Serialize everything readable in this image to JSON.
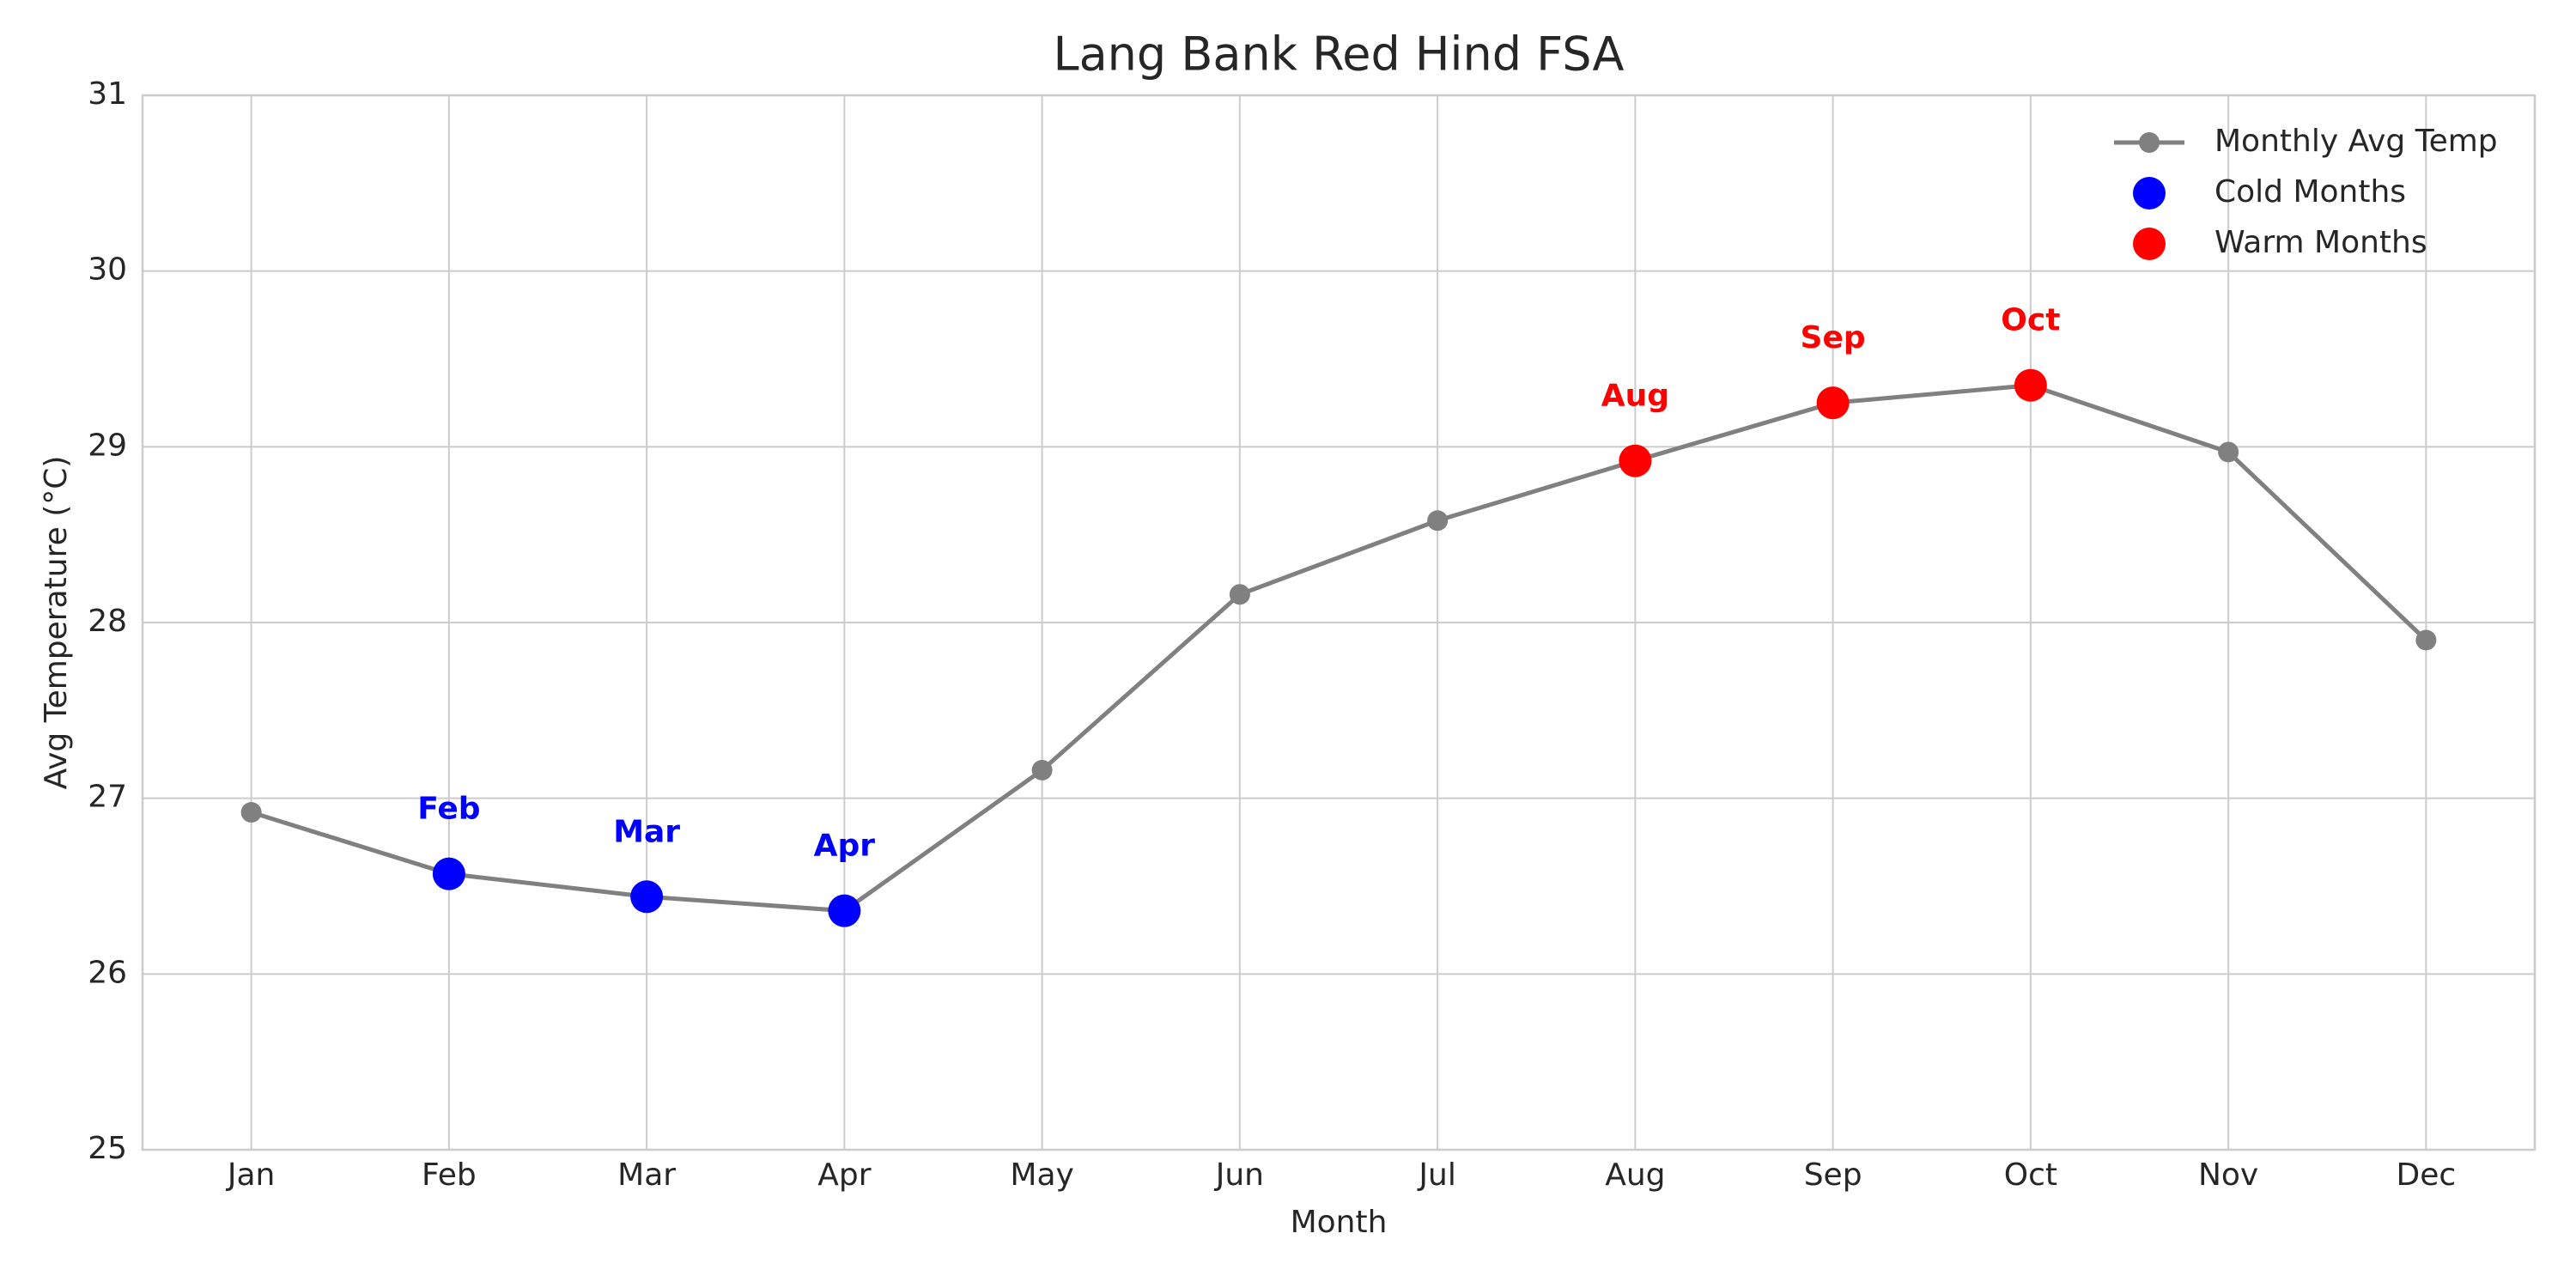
{
  "chart_data": {
    "type": "line",
    "title": "Lang Bank Red Hind FSA",
    "xlabel": "Month",
    "ylabel": "Avg Temperature (°C)",
    "categories": [
      "Jan",
      "Feb",
      "Mar",
      "Apr",
      "May",
      "Jun",
      "Jul",
      "Aug",
      "Sep",
      "Oct",
      "Nov",
      "Dec"
    ],
    "series": [
      {
        "name": "Monthly Avg Temp",
        "color": "#808080",
        "style": "line",
        "values": [
          26.92,
          26.57,
          26.44,
          26.36,
          27.16,
          28.16,
          28.58,
          28.92,
          29.25,
          29.35,
          28.97,
          27.9
        ]
      },
      {
        "name": "Cold Months",
        "color": "#0000ff",
        "style": "scatter",
        "annotate": true,
        "values": [
          null,
          26.57,
          26.44,
          26.36,
          null,
          null,
          null,
          null,
          null,
          null,
          null,
          null
        ]
      },
      {
        "name": "Warm Months",
        "color": "#ff0000",
        "style": "scatter",
        "annotate": true,
        "values": [
          null,
          null,
          null,
          null,
          null,
          null,
          null,
          28.92,
          29.25,
          29.35,
          null,
          null
        ]
      }
    ],
    "ylim": [
      25,
      31
    ],
    "yticks": [
      25,
      26,
      27,
      28,
      29,
      30,
      31
    ],
    "grid": true,
    "legend": "upper right"
  }
}
